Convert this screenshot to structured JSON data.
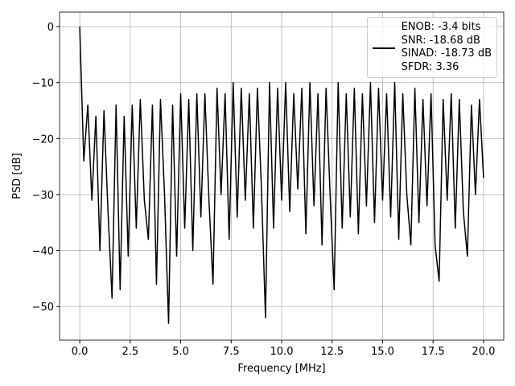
{
  "chart_data": {
    "type": "line",
    "xlabel": "Frequency [MHz]",
    "ylabel": "PSD [dB]",
    "x": [
      0,
      0.2,
      0.4,
      0.6,
      0.8,
      1.0,
      1.2,
      1.4,
      1.6,
      1.8,
      2.0,
      2.2,
      2.4,
      2.6,
      2.8,
      3.0,
      3.2,
      3.4,
      3.6,
      3.8,
      4.0,
      4.2,
      4.4,
      4.6,
      4.8,
      5.0,
      5.2,
      5.4,
      5.6,
      5.8,
      6.0,
      6.2,
      6.4,
      6.6,
      6.8,
      7.0,
      7.2,
      7.4,
      7.6,
      7.8,
      8.0,
      8.2,
      8.4,
      8.6,
      8.8,
      9.0,
      9.2,
      9.4,
      9.6,
      9.8,
      10.0,
      10.2,
      10.4,
      10.6,
      10.8,
      11.0,
      11.2,
      11.4,
      11.6,
      11.8,
      12.0,
      12.2,
      12.4,
      12.6,
      12.8,
      13.0,
      13.2,
      13.4,
      13.6,
      13.8,
      14.0,
      14.2,
      14.4,
      14.6,
      14.8,
      15.0,
      15.2,
      15.4,
      15.6,
      15.8,
      16.0,
      16.2,
      16.4,
      16.6,
      16.8,
      17.0,
      17.2,
      17.4,
      17.6,
      17.8,
      18.0,
      18.2,
      18.4,
      18.6,
      18.8,
      19.0,
      19.2,
      19.4,
      19.6,
      19.8,
      20.0
    ],
    "series": [
      {
        "name": "ENOB: -3.4 bits\nSNR: -18.68 dB\nSINAD: -18.73 dB\nSFDR: 3.36",
        "color": "#000000",
        "values": [
          0,
          -24,
          -14,
          -31,
          -16,
          -40,
          -15,
          -33,
          -48.5,
          -14,
          -47,
          -16,
          -41,
          -14,
          -36,
          -13,
          -31,
          -38,
          -14,
          -46,
          -13,
          -30,
          -53,
          -14,
          -41,
          -12,
          -36,
          -13,
          -40,
          -12,
          -34,
          -12,
          -31,
          -46,
          -11,
          -30,
          -12,
          -38,
          -10,
          -34,
          -11,
          -31,
          -12,
          -36,
          -11,
          -29,
          -52,
          -10,
          -36,
          -11,
          -31,
          -10,
          -33,
          -12,
          -29,
          -11,
          -37,
          -10,
          -32,
          -12,
          -39,
          -11,
          -30,
          -47,
          -10,
          -36,
          -12,
          -34,
          -11,
          -37,
          -12,
          -32,
          -10,
          -35,
          -11,
          -31,
          -12,
          -34,
          -10,
          -38,
          -12,
          -30,
          -39,
          -11,
          -35,
          -13,
          -32,
          -12,
          -39,
          -45.5,
          -13,
          -31,
          -12,
          -36,
          -13,
          -33,
          -41,
          -14,
          -30,
          -13,
          -27
        ]
      }
    ],
    "xlim": [
      -1,
      21
    ],
    "ylim": [
      -56,
      2.6
    ],
    "xticks": [
      {
        "value": 0,
        "label": "0.0"
      },
      2.5,
      {
        "value": 5,
        "label": "5.0"
      },
      7.5,
      {
        "value": 10,
        "label": "10.0"
      },
      12.5,
      {
        "value": 15,
        "label": "15.0"
      },
      17.5,
      {
        "value": 20,
        "label": "20.0"
      }
    ],
    "yticks": [
      {
        "value": 0,
        "label": "0"
      },
      {
        "value": -10,
        "label": "−10"
      },
      {
        "value": -20,
        "label": "−20"
      },
      {
        "value": -30,
        "label": "−30"
      },
      {
        "value": -40,
        "label": "−40"
      },
      {
        "value": -50,
        "label": "−50"
      }
    ],
    "grid": true,
    "legend": "upper right"
  }
}
